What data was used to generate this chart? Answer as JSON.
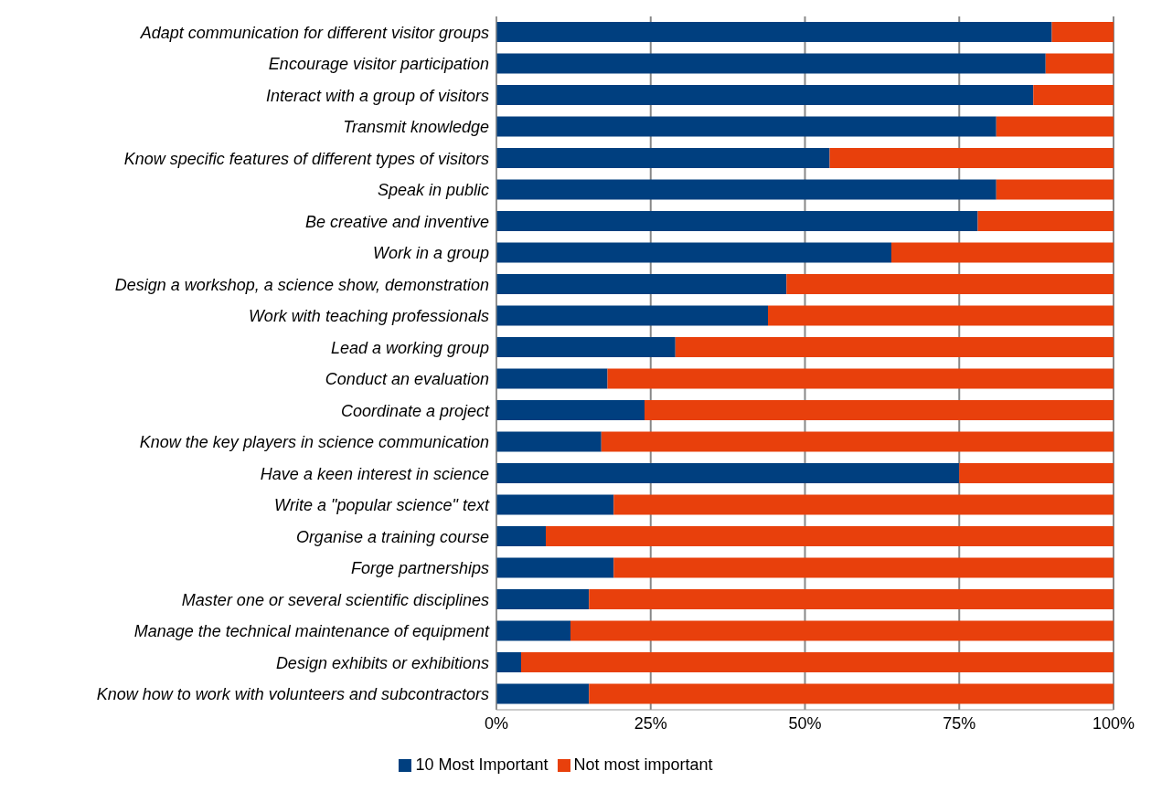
{
  "chart_data": {
    "type": "bar",
    "orientation": "horizontal",
    "stacked": true,
    "categories": [
      "Adapt communication for different visitor groups",
      "Encourage visitor participation",
      "Interact with a group of visitors",
      "Transmit knowledge",
      "Know specific features of different types of visitors",
      "Speak in public",
      "Be creative and inventive",
      "Work in a group",
      "Design a workshop, a science show, demonstration",
      "Work with teaching professionals",
      "Lead a working group",
      "Conduct an evaluation",
      "Coordinate a project",
      "Know the key players in science communication",
      "Have a keen interest in science",
      "Write a \"popular science\" text",
      "Organise a training course",
      "Forge partnerships",
      "Master one or several scientific disciplines",
      "Manage the technical maintenance of equipment",
      "Design exhibits or exhibitions",
      "Know how to work with volunteers and subcontractors"
    ],
    "series": [
      {
        "name": "10 Most Important",
        "color": "#003f7f",
        "values": [
          90,
          89,
          87,
          81,
          54,
          81,
          78,
          64,
          47,
          44,
          29,
          18,
          24,
          17,
          75,
          19,
          8,
          19,
          15,
          12,
          4,
          15
        ]
      },
      {
        "name": "Not most important",
        "color": "#e8400c",
        "values": [
          10,
          11,
          13,
          19,
          46,
          19,
          22,
          36,
          53,
          56,
          71,
          82,
          76,
          83,
          25,
          81,
          92,
          81,
          85,
          88,
          96,
          85
        ]
      }
    ],
    "xlim": [
      0,
      100
    ],
    "xticks": [
      {
        "value": 0,
        "label": "0%"
      },
      {
        "value": 25,
        "label": "25%"
      },
      {
        "value": 50,
        "label": "50%"
      },
      {
        "value": 75,
        "label": "75%"
      },
      {
        "value": 100,
        "label": "100%"
      }
    ],
    "grid": "x",
    "legend": "bottom"
  }
}
